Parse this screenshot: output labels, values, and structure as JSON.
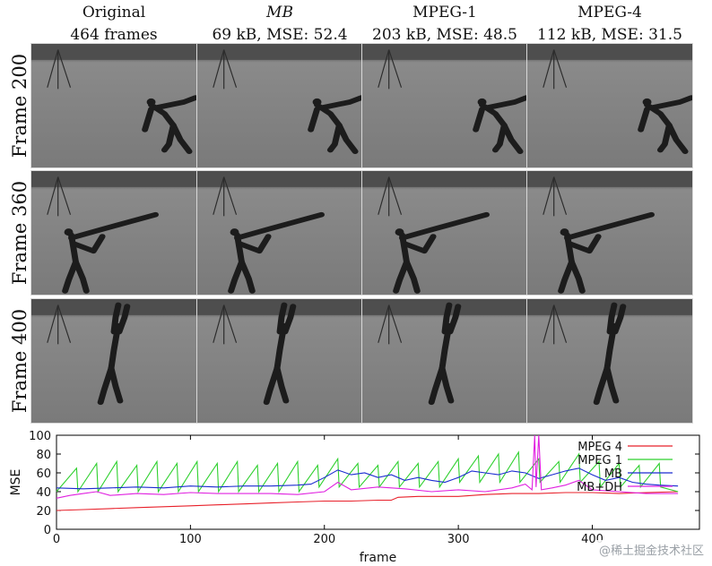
{
  "columns": [
    {
      "line1": "Original",
      "line2": "464 frames",
      "italic": false
    },
    {
      "line1": "MB",
      "line2": "69 kB, MSE: 52.4",
      "italic": true
    },
    {
      "line1": "MPEG-1",
      "line2": "203 kB, MSE: 48.5",
      "italic": false
    },
    {
      "line1": "MPEG-4",
      "line2": "112 kB, MSE: 31.5",
      "italic": false
    }
  ],
  "rows": [
    {
      "label": "Frame 200",
      "pose": "bend"
    },
    {
      "label": "Frame 360",
      "pose": "reach"
    },
    {
      "label": "Frame 400",
      "pose": "stretch"
    }
  ],
  "watermark": "@稀土掘金技术社区",
  "chart_data": {
    "type": "line",
    "xlabel": "frame",
    "ylabel": "MSE",
    "xlim": [
      0,
      480
    ],
    "ylim": [
      0,
      100
    ],
    "xticks": [
      0,
      100,
      200,
      300,
      400
    ],
    "yticks": [
      0,
      20,
      40,
      60,
      80,
      100
    ],
    "legend_position": "top-right",
    "grid": false,
    "series": [
      {
        "name": "MPEG 4",
        "color": "#e8202a",
        "x": [
          0,
          20,
          40,
          60,
          80,
          100,
          120,
          140,
          160,
          180,
          200,
          220,
          240,
          250,
          255,
          270,
          300,
          320,
          340,
          360,
          380,
          400,
          420,
          440,
          464
        ],
        "y": [
          20,
          21,
          22,
          23,
          24,
          25,
          26,
          27,
          28,
          29,
          30,
          30,
          31,
          31,
          34,
          35,
          35,
          37,
          38,
          38,
          39,
          39,
          38,
          39,
          40
        ]
      },
      {
        "name": "MPEG 1",
        "color": "#2fd02f",
        "x": [
          0,
          15,
          16,
          30,
          31,
          45,
          46,
          60,
          61,
          75,
          76,
          90,
          91,
          105,
          106,
          120,
          121,
          135,
          136,
          150,
          151,
          165,
          166,
          180,
          181,
          195,
          196,
          210,
          211,
          225,
          226,
          240,
          241,
          255,
          256,
          270,
          271,
          285,
          286,
          300,
          301,
          315,
          316,
          330,
          331,
          345,
          346,
          360,
          361,
          375,
          376,
          390,
          391,
          405,
          406,
          420,
          421,
          435,
          436,
          450,
          451,
          464
        ],
        "y": [
          40,
          65,
          40,
          70,
          40,
          72,
          40,
          68,
          40,
          72,
          40,
          70,
          40,
          72,
          40,
          70,
          40,
          72,
          40,
          68,
          40,
          70,
          40,
          72,
          40,
          68,
          45,
          75,
          45,
          70,
          45,
          68,
          45,
          72,
          45,
          70,
          45,
          72,
          45,
          75,
          50,
          78,
          50,
          80,
          50,
          82,
          50,
          75,
          50,
          72,
          50,
          80,
          50,
          72,
          45,
          70,
          45,
          68,
          45,
          70,
          45,
          40
        ]
      },
      {
        "name": "MB",
        "color": "#1a2bd0",
        "x": [
          0,
          20,
          40,
          60,
          80,
          100,
          120,
          140,
          160,
          180,
          190,
          200,
          210,
          220,
          230,
          240,
          250,
          260,
          270,
          280,
          290,
          300,
          310,
          320,
          330,
          340,
          350,
          360,
          370,
          380,
          390,
          400,
          410,
          420,
          430,
          440,
          450,
          464
        ],
        "y": [
          44,
          43,
          44,
          45,
          44,
          46,
          45,
          46,
          46,
          47,
          48,
          55,
          63,
          58,
          60,
          55,
          58,
          52,
          55,
          52,
          50,
          55,
          62,
          60,
          58,
          62,
          60,
          54,
          58,
          62,
          65,
          58,
          52,
          55,
          50,
          48,
          47,
          46
        ]
      },
      {
        "name": "MB+DH",
        "color": "#e020e0",
        "x": [
          0,
          10,
          20,
          30,
          40,
          60,
          80,
          100,
          120,
          140,
          160,
          180,
          200,
          210,
          220,
          240,
          260,
          280,
          300,
          320,
          340,
          350,
          355,
          357,
          358,
          360,
          362,
          370,
          380,
          390,
          400,
          420,
          440,
          464
        ],
        "y": [
          33,
          36,
          38,
          40,
          36,
          38,
          37,
          39,
          38,
          38,
          38,
          37,
          40,
          50,
          42,
          45,
          43,
          40,
          42,
          40,
          44,
          48,
          42,
          100,
          45,
          100,
          42,
          44,
          47,
          52,
          42,
          40,
          38,
          38
        ]
      }
    ]
  }
}
